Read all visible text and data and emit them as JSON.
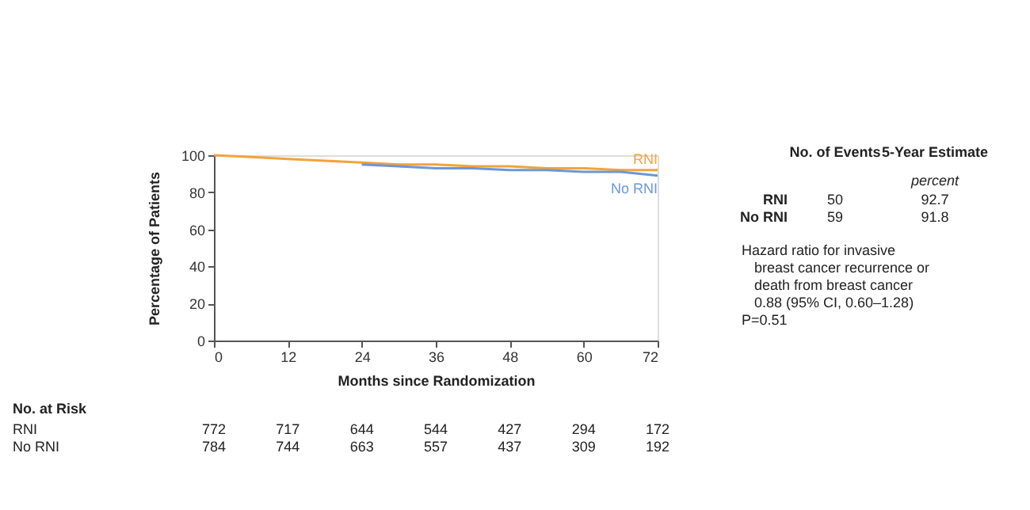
{
  "chart_data": {
    "type": "line",
    "xlabel": "Months since Randomization",
    "ylabel": "Percentage of Patients",
    "x": [
      0,
      6,
      12,
      18,
      24,
      30,
      36,
      42,
      48,
      54,
      60,
      66,
      72
    ],
    "series": [
      {
        "name": "RNI",
        "color": "#f2a33a",
        "values": [
          100,
          99,
          98,
          97,
          96,
          95,
          95,
          94,
          94,
          93,
          93,
          92,
          92
        ]
      },
      {
        "name": "No RNI",
        "color": "#6b98d6",
        "values": [
          null,
          null,
          null,
          null,
          95,
          94,
          93,
          93,
          92,
          92,
          91,
          91,
          89
        ]
      }
    ],
    "xlim": [
      0,
      72
    ],
    "xticks": [
      0,
      12,
      24,
      36,
      48,
      60,
      72
    ],
    "ylim": [
      0,
      100
    ],
    "yticks": [
      0,
      20,
      40,
      60,
      80,
      100
    ],
    "grid": false,
    "marker": "none",
    "line_style": "solid",
    "annotations": [
      "No. at Risk",
      "RNI",
      "772",
      "717",
      "644",
      "544",
      "427",
      "294",
      "172",
      "No RNI",
      "784",
      "744",
      "663",
      "557",
      "437",
      "309",
      "192",
      "No. of Events",
      "5-Year Estimate",
      "percent",
      "RNI",
      "50",
      "92.7",
      "No RNI",
      "59",
      "91.8",
      "Hazard ratio for invasive",
      "breast cancer recurrence or",
      "death from breast cancer",
      "0.88 (95% CI, 0.60–1.28)",
      "P=0.51"
    ]
  }
}
